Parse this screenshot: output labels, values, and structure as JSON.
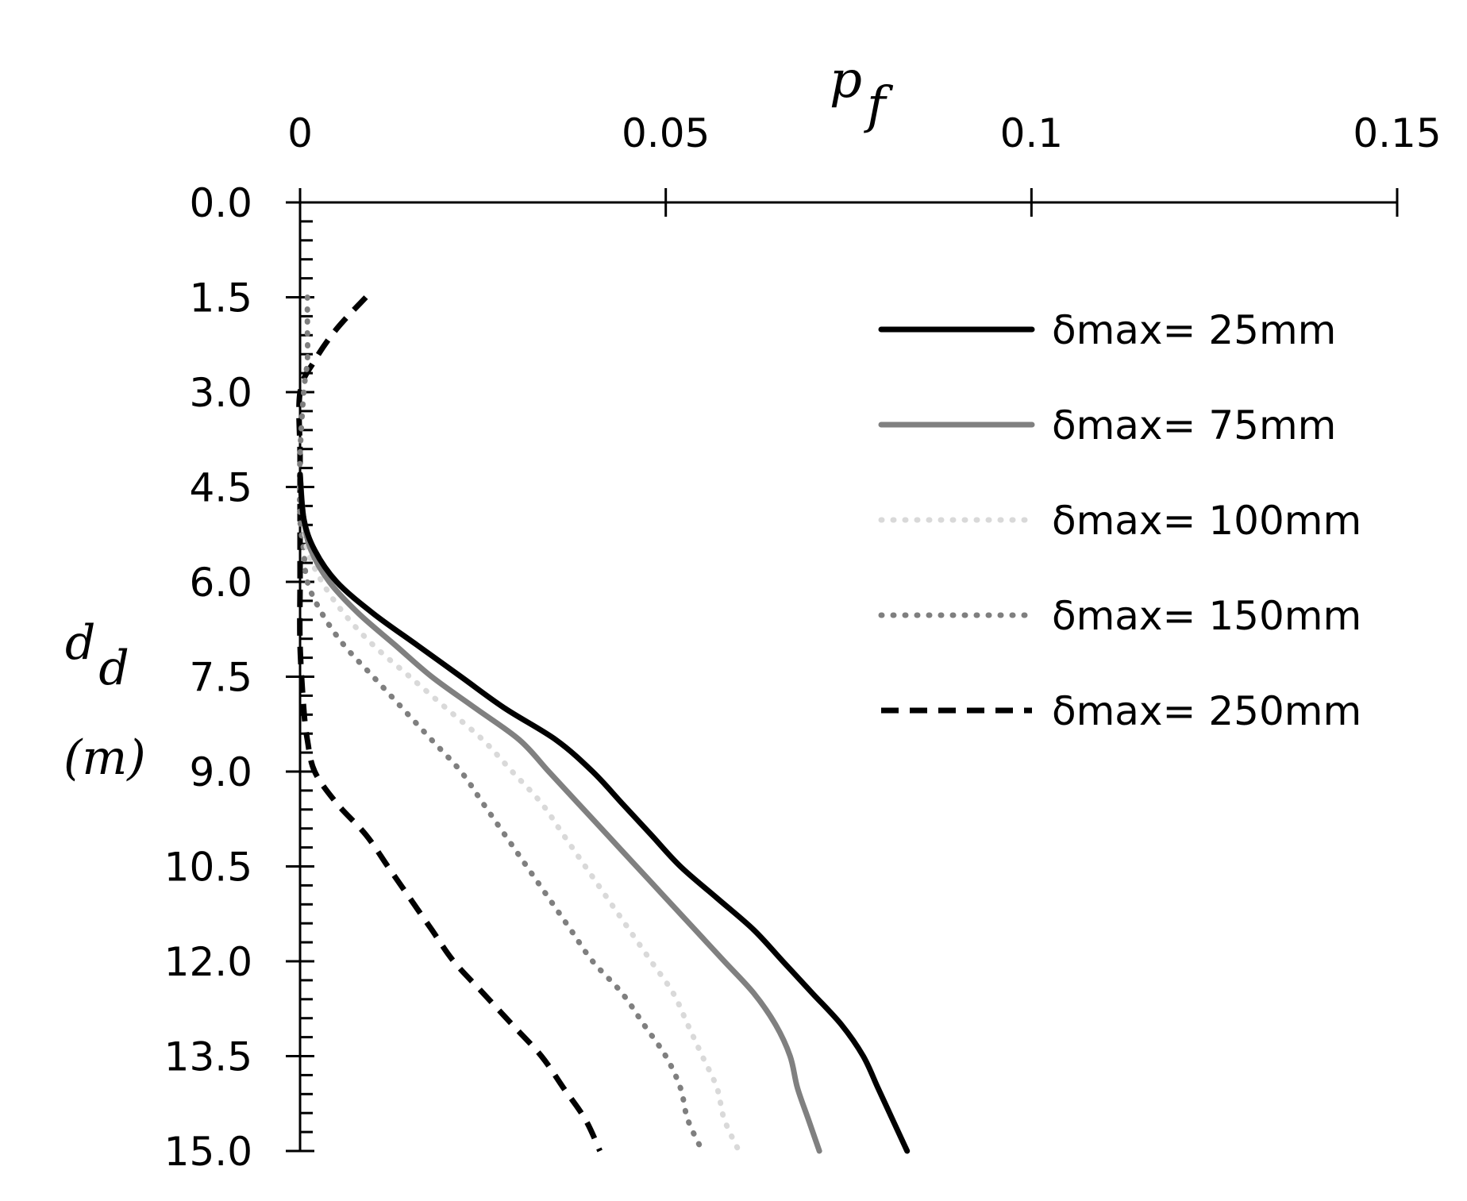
{
  "chart_data": {
    "type": "line",
    "orientation": "depth-profile",
    "title": "",
    "xlabel": {
      "main": "p",
      "sub": "f"
    },
    "ylabel": {
      "main": "d",
      "sub": "d",
      "unit": "(m)"
    },
    "xlim": [
      0,
      0.15
    ],
    "ylim": [
      0,
      15
    ],
    "y_inverted": true,
    "x_axis_position": "top",
    "x_ticks": [
      0,
      0.05,
      0.1,
      0.15
    ],
    "x_tick_labels": [
      "0",
      "0.05",
      "0.1",
      "0.15"
    ],
    "y_ticks": [
      0,
      1.5,
      3,
      4.5,
      6,
      7.5,
      9,
      10.5,
      12,
      13.5,
      15
    ],
    "y_tick_labels": [
      "0.0",
      "1.5",
      "3.0",
      "4.5",
      "6.0",
      "7.5",
      "9.0",
      "10.5",
      "12.0",
      "13.5",
      "15.0"
    ],
    "y_minor_step": 0.3,
    "grid": false,
    "legend_position": "top-right",
    "series": [
      {
        "name": "δmax= 25mm",
        "color": "#000000",
        "style": "solid",
        "points": [
          {
            "depth": 4.3,
            "p": 0.0
          },
          {
            "depth": 5.0,
            "p": 0.0005
          },
          {
            "depth": 5.5,
            "p": 0.002
          },
          {
            "depth": 6.0,
            "p": 0.005
          },
          {
            "depth": 6.5,
            "p": 0.01
          },
          {
            "depth": 7.0,
            "p": 0.016
          },
          {
            "depth": 7.5,
            "p": 0.022
          },
          {
            "depth": 8.0,
            "p": 0.028
          },
          {
            "depth": 8.5,
            "p": 0.035
          },
          {
            "depth": 9.0,
            "p": 0.04
          },
          {
            "depth": 9.5,
            "p": 0.044
          },
          {
            "depth": 10.0,
            "p": 0.048
          },
          {
            "depth": 10.5,
            "p": 0.052
          },
          {
            "depth": 11.0,
            "p": 0.057
          },
          {
            "depth": 11.5,
            "p": 0.062
          },
          {
            "depth": 12.0,
            "p": 0.066
          },
          {
            "depth": 12.5,
            "p": 0.07
          },
          {
            "depth": 13.0,
            "p": 0.074
          },
          {
            "depth": 13.5,
            "p": 0.077
          },
          {
            "depth": 14.0,
            "p": 0.079
          },
          {
            "depth": 14.5,
            "p": 0.081
          },
          {
            "depth": 15.0,
            "p": 0.083
          }
        ]
      },
      {
        "name": "δmax= 75mm",
        "color": "#808080",
        "style": "solid",
        "points": [
          {
            "depth": 4.3,
            "p": 0.0
          },
          {
            "depth": 5.0,
            "p": 0.0005
          },
          {
            "depth": 5.5,
            "p": 0.0015
          },
          {
            "depth": 6.0,
            "p": 0.004
          },
          {
            "depth": 6.5,
            "p": 0.008
          },
          {
            "depth": 7.0,
            "p": 0.013
          },
          {
            "depth": 7.5,
            "p": 0.018
          },
          {
            "depth": 8.0,
            "p": 0.024
          },
          {
            "depth": 8.5,
            "p": 0.03
          },
          {
            "depth": 9.0,
            "p": 0.034
          },
          {
            "depth": 9.5,
            "p": 0.038
          },
          {
            "depth": 10.0,
            "p": 0.042
          },
          {
            "depth": 10.5,
            "p": 0.046
          },
          {
            "depth": 11.0,
            "p": 0.05
          },
          {
            "depth": 11.5,
            "p": 0.054
          },
          {
            "depth": 12.0,
            "p": 0.058
          },
          {
            "depth": 12.5,
            "p": 0.062
          },
          {
            "depth": 13.0,
            "p": 0.065
          },
          {
            "depth": 13.5,
            "p": 0.067
          },
          {
            "depth": 14.0,
            "p": 0.068
          },
          {
            "depth": 14.5,
            "p": 0.0695
          },
          {
            "depth": 15.0,
            "p": 0.071
          }
        ]
      },
      {
        "name": "δmax= 100mm",
        "color": "#d9d9d9",
        "style": "dotted",
        "points": [
          {
            "depth": 4.5,
            "p": 0.0
          },
          {
            "depth": 5.0,
            "p": 0.0005
          },
          {
            "depth": 5.5,
            "p": 0.001
          },
          {
            "depth": 6.0,
            "p": 0.003
          },
          {
            "depth": 6.5,
            "p": 0.006
          },
          {
            "depth": 7.0,
            "p": 0.01
          },
          {
            "depth": 7.5,
            "p": 0.015
          },
          {
            "depth": 8.0,
            "p": 0.02
          },
          {
            "depth": 8.5,
            "p": 0.025
          },
          {
            "depth": 9.0,
            "p": 0.029
          },
          {
            "depth": 9.5,
            "p": 0.033
          },
          {
            "depth": 10.0,
            "p": 0.036
          },
          {
            "depth": 10.5,
            "p": 0.039
          },
          {
            "depth": 11.0,
            "p": 0.042
          },
          {
            "depth": 11.5,
            "p": 0.045
          },
          {
            "depth": 12.0,
            "p": 0.048
          },
          {
            "depth": 12.5,
            "p": 0.051
          },
          {
            "depth": 13.0,
            "p": 0.053
          },
          {
            "depth": 13.5,
            "p": 0.055
          },
          {
            "depth": 14.0,
            "p": 0.057
          },
          {
            "depth": 14.5,
            "p": 0.058
          },
          {
            "depth": 15.0,
            "p": 0.06
          }
        ]
      },
      {
        "name": "δmax= 150mm",
        "color": "#7f7f7f",
        "style": "dotted",
        "points": [
          {
            "depth": 1.5,
            "p": 0.001
          },
          {
            "depth": 2.0,
            "p": 0.001
          },
          {
            "depth": 2.5,
            "p": 0.001
          },
          {
            "depth": 3.0,
            "p": 0.0005
          },
          {
            "depth": 4.0,
            "p": 0.0
          },
          {
            "depth": 5.0,
            "p": 0.0
          },
          {
            "depth": 5.5,
            "p": 0.0005
          },
          {
            "depth": 6.0,
            "p": 0.001
          },
          {
            "depth": 6.5,
            "p": 0.003
          },
          {
            "depth": 7.0,
            "p": 0.006
          },
          {
            "depth": 7.5,
            "p": 0.01
          },
          {
            "depth": 8.0,
            "p": 0.014
          },
          {
            "depth": 8.5,
            "p": 0.018
          },
          {
            "depth": 9.0,
            "p": 0.022
          },
          {
            "depth": 9.5,
            "p": 0.025
          },
          {
            "depth": 10.0,
            "p": 0.028
          },
          {
            "depth": 10.5,
            "p": 0.031
          },
          {
            "depth": 11.0,
            "p": 0.034
          },
          {
            "depth": 11.5,
            "p": 0.037
          },
          {
            "depth": 12.0,
            "p": 0.04
          },
          {
            "depth": 12.5,
            "p": 0.044
          },
          {
            "depth": 13.0,
            "p": 0.047
          },
          {
            "depth": 13.5,
            "p": 0.05
          },
          {
            "depth": 14.0,
            "p": 0.052
          },
          {
            "depth": 14.5,
            "p": 0.053
          },
          {
            "depth": 15.0,
            "p": 0.055
          }
        ]
      },
      {
        "name": "δmax= 250mm",
        "color": "#000000",
        "style": "dashed",
        "points": [
          {
            "depth": 1.5,
            "p": 0.009
          },
          {
            "depth": 2.0,
            "p": 0.005
          },
          {
            "depth": 2.5,
            "p": 0.002
          },
          {
            "depth": 3.0,
            "p": 0.0
          },
          {
            "depth": 4.0,
            "p": 0.0
          },
          {
            "depth": 5.0,
            "p": 0.0
          },
          {
            "depth": 6.0,
            "p": 0.0
          },
          {
            "depth": 7.0,
            "p": 0.0
          },
          {
            "depth": 8.0,
            "p": 0.0005
          },
          {
            "depth": 8.5,
            "p": 0.001
          },
          {
            "depth": 9.0,
            "p": 0.002
          },
          {
            "depth": 9.5,
            "p": 0.005
          },
          {
            "depth": 10.0,
            "p": 0.009
          },
          {
            "depth": 10.5,
            "p": 0.012
          },
          {
            "depth": 11.0,
            "p": 0.015
          },
          {
            "depth": 11.5,
            "p": 0.018
          },
          {
            "depth": 12.0,
            "p": 0.021
          },
          {
            "depth": 12.5,
            "p": 0.025
          },
          {
            "depth": 13.0,
            "p": 0.029
          },
          {
            "depth": 13.5,
            "p": 0.033
          },
          {
            "depth": 14.0,
            "p": 0.036
          },
          {
            "depth": 14.5,
            "p": 0.039
          },
          {
            "depth": 15.0,
            "p": 0.041
          }
        ]
      }
    ]
  }
}
